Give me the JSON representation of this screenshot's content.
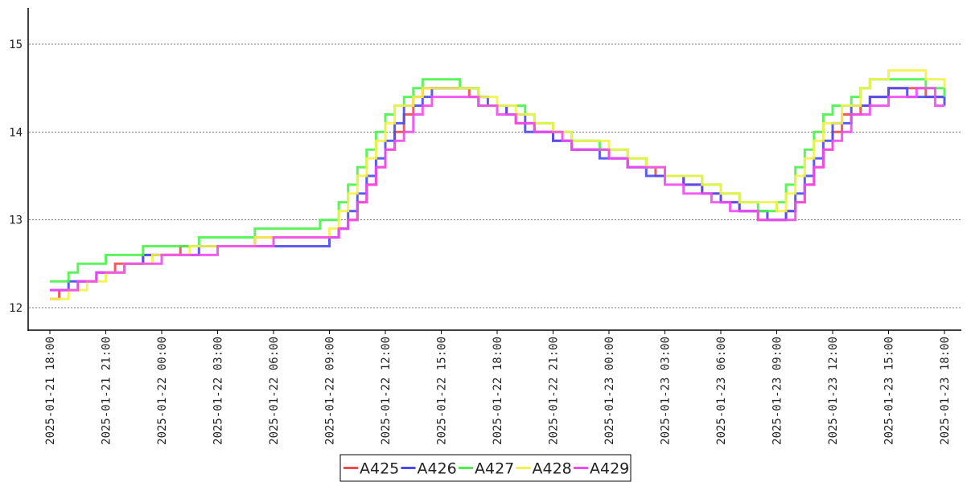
{
  "chart_data": {
    "type": "line",
    "title": "",
    "xlabel": "",
    "ylabel": "",
    "ylim": [
      11.7,
      15.4
    ],
    "y_ticks": [
      12,
      13,
      14,
      15
    ],
    "x_ticks": [
      "2025-01-21 18:00",
      "2025-01-21 21:00",
      "2025-01-22 00:00",
      "2025-01-22 03:00",
      "2025-01-22 06:00",
      "2025-01-22 09:00",
      "2025-01-22 12:00",
      "2025-01-22 15:00",
      "2025-01-22 18:00",
      "2025-01-22 21:00",
      "2025-01-23 00:00",
      "2025-01-23 03:00",
      "2025-01-23 06:00",
      "2025-01-23 09:00",
      "2025-01-23 12:00",
      "2025-01-23 15:00",
      "2025-01-23 18:00"
    ],
    "step": true,
    "grid": "horizontal-dotted",
    "legend_position": "bottom-center",
    "series": [
      {
        "name": "A425",
        "color": "#f24a4a",
        "points": [
          [
            "2025-01-21 18:00",
            12.1
          ],
          [
            "2025-01-21 18:30",
            12.2
          ],
          [
            "2025-01-21 19:30",
            12.3
          ],
          [
            "2025-01-21 20:30",
            12.4
          ],
          [
            "2025-01-21 21:30",
            12.5
          ],
          [
            "2025-01-21 23:00",
            12.6
          ],
          [
            "2025-01-22 01:00",
            12.7
          ],
          [
            "2025-01-22 05:00",
            12.8
          ],
          [
            "2025-01-22 09:30",
            12.9
          ],
          [
            "2025-01-22 10:00",
            13.0
          ],
          [
            "2025-01-22 10:30",
            13.2
          ],
          [
            "2025-01-22 11:00",
            13.4
          ],
          [
            "2025-01-22 11:30",
            13.6
          ],
          [
            "2025-01-22 12:00",
            13.8
          ],
          [
            "2025-01-22 12:30",
            14.0
          ],
          [
            "2025-01-22 13:00",
            14.2
          ],
          [
            "2025-01-22 13:30",
            14.4
          ],
          [
            "2025-01-22 14:00",
            14.5
          ],
          [
            "2025-01-22 16:30",
            14.4
          ],
          [
            "2025-01-22 17:00",
            14.3
          ],
          [
            "2025-01-22 18:30",
            14.2
          ],
          [
            "2025-01-22 19:00",
            14.1
          ],
          [
            "2025-01-22 20:00",
            14.0
          ],
          [
            "2025-01-22 21:00",
            13.9
          ],
          [
            "2025-01-22 22:00",
            13.8
          ],
          [
            "2025-01-23 00:00",
            13.7
          ],
          [
            "2025-01-23 01:00",
            13.6
          ],
          [
            "2025-01-23 02:30",
            13.5
          ],
          [
            "2025-01-23 04:00",
            13.4
          ],
          [
            "2025-01-23 05:00",
            13.3
          ],
          [
            "2025-01-23 06:00",
            13.2
          ],
          [
            "2025-01-23 07:00",
            13.1
          ],
          [
            "2025-01-23 08:00",
            13.0
          ],
          [
            "2025-01-23 09:30",
            13.1
          ],
          [
            "2025-01-23 10:00",
            13.2
          ],
          [
            "2025-01-23 10:30",
            13.4
          ],
          [
            "2025-01-23 11:00",
            13.6
          ],
          [
            "2025-01-23 11:30",
            13.8
          ],
          [
            "2025-01-23 12:00",
            14.0
          ],
          [
            "2025-01-23 12:30",
            14.2
          ],
          [
            "2025-01-23 13:30",
            14.3
          ],
          [
            "2025-01-23 14:00",
            14.4
          ],
          [
            "2025-01-23 15:00",
            14.5
          ],
          [
            "2025-01-23 17:00",
            14.4
          ],
          [
            "2025-01-23 18:00",
            14.4
          ]
        ]
      },
      {
        "name": "A426",
        "color": "#4a4af2",
        "points": [
          [
            "2025-01-21 18:00",
            12.2
          ],
          [
            "2025-01-21 19:00",
            12.3
          ],
          [
            "2025-01-21 20:30",
            12.4
          ],
          [
            "2025-01-21 22:00",
            12.5
          ],
          [
            "2025-01-21 23:00",
            12.6
          ],
          [
            "2025-01-22 02:00",
            12.7
          ],
          [
            "2025-01-22 06:00",
            12.7
          ],
          [
            "2025-01-22 09:00",
            12.8
          ],
          [
            "2025-01-22 09:30",
            12.9
          ],
          [
            "2025-01-22 10:00",
            13.1
          ],
          [
            "2025-01-22 10:30",
            13.3
          ],
          [
            "2025-01-22 11:00",
            13.5
          ],
          [
            "2025-01-22 11:30",
            13.7
          ],
          [
            "2025-01-22 12:00",
            13.9
          ],
          [
            "2025-01-22 12:30",
            14.1
          ],
          [
            "2025-01-22 13:00",
            14.3
          ],
          [
            "2025-01-22 14:00",
            14.4
          ],
          [
            "2025-01-22 14:30",
            14.5
          ],
          [
            "2025-01-22 17:00",
            14.4
          ],
          [
            "2025-01-22 17:30",
            14.3
          ],
          [
            "2025-01-22 18:30",
            14.2
          ],
          [
            "2025-01-22 19:30",
            14.0
          ],
          [
            "2025-01-22 21:00",
            13.9
          ],
          [
            "2025-01-22 22:00",
            13.8
          ],
          [
            "2025-01-22 23:30",
            13.7
          ],
          [
            "2025-01-23 01:00",
            13.6
          ],
          [
            "2025-01-23 02:00",
            13.5
          ],
          [
            "2025-01-23 04:00",
            13.4
          ],
          [
            "2025-01-23 05:00",
            13.3
          ],
          [
            "2025-01-23 06:00",
            13.2
          ],
          [
            "2025-01-23 07:00",
            13.1
          ],
          [
            "2025-01-23 08:30",
            13.0
          ],
          [
            "2025-01-23 09:30",
            13.1
          ],
          [
            "2025-01-23 10:00",
            13.3
          ],
          [
            "2025-01-23 10:30",
            13.5
          ],
          [
            "2025-01-23 11:00",
            13.7
          ],
          [
            "2025-01-23 11:30",
            13.9
          ],
          [
            "2025-01-23 12:00",
            14.1
          ],
          [
            "2025-01-23 13:00",
            14.3
          ],
          [
            "2025-01-23 14:00",
            14.4
          ],
          [
            "2025-01-23 15:00",
            14.5
          ],
          [
            "2025-01-23 16:00",
            14.4
          ],
          [
            "2025-01-23 18:00",
            14.3
          ]
        ]
      },
      {
        "name": "A427",
        "color": "#4af24a",
        "points": [
          [
            "2025-01-21 18:00",
            12.3
          ],
          [
            "2025-01-21 19:00",
            12.4
          ],
          [
            "2025-01-21 19:30",
            12.5
          ],
          [
            "2025-01-21 21:00",
            12.6
          ],
          [
            "2025-01-21 23:00",
            12.7
          ],
          [
            "2025-01-22 02:00",
            12.8
          ],
          [
            "2025-01-22 05:00",
            12.9
          ],
          [
            "2025-01-22 08:30",
            13.0
          ],
          [
            "2025-01-22 09:30",
            13.2
          ],
          [
            "2025-01-22 10:00",
            13.4
          ],
          [
            "2025-01-22 10:30",
            13.6
          ],
          [
            "2025-01-22 11:00",
            13.8
          ],
          [
            "2025-01-22 11:30",
            14.0
          ],
          [
            "2025-01-22 12:00",
            14.2
          ],
          [
            "2025-01-22 12:30",
            14.3
          ],
          [
            "2025-01-22 13:00",
            14.4
          ],
          [
            "2025-01-22 13:30",
            14.5
          ],
          [
            "2025-01-22 14:00",
            14.6
          ],
          [
            "2025-01-22 16:00",
            14.5
          ],
          [
            "2025-01-22 17:00",
            14.3
          ],
          [
            "2025-01-22 19:30",
            14.2
          ],
          [
            "2025-01-22 20:00",
            14.1
          ],
          [
            "2025-01-22 21:00",
            14.0
          ],
          [
            "2025-01-22 22:00",
            13.9
          ],
          [
            "2025-01-22 23:30",
            13.8
          ],
          [
            "2025-01-23 01:00",
            13.7
          ],
          [
            "2025-01-23 02:00",
            13.6
          ],
          [
            "2025-01-23 03:00",
            13.5
          ],
          [
            "2025-01-23 05:00",
            13.4
          ],
          [
            "2025-01-23 06:00",
            13.3
          ],
          [
            "2025-01-23 07:00",
            13.2
          ],
          [
            "2025-01-23 08:00",
            13.1
          ],
          [
            "2025-01-23 09:00",
            13.2
          ],
          [
            "2025-01-23 09:30",
            13.4
          ],
          [
            "2025-01-23 10:00",
            13.6
          ],
          [
            "2025-01-23 10:30",
            13.8
          ],
          [
            "2025-01-23 11:00",
            14.0
          ],
          [
            "2025-01-23 11:30",
            14.2
          ],
          [
            "2025-01-23 12:00",
            14.3
          ],
          [
            "2025-01-23 13:00",
            14.4
          ],
          [
            "2025-01-23 13:30",
            14.5
          ],
          [
            "2025-01-23 14:00",
            14.6
          ],
          [
            "2025-01-23 17:00",
            14.5
          ],
          [
            "2025-01-23 18:00",
            14.4
          ]
        ]
      },
      {
        "name": "A428",
        "color": "#f2f24a",
        "points": [
          [
            "2025-01-21 18:00",
            12.1
          ],
          [
            "2025-01-21 19:00",
            12.2
          ],
          [
            "2025-01-21 20:00",
            12.3
          ],
          [
            "2025-01-21 21:00",
            12.4
          ],
          [
            "2025-01-21 22:00",
            12.5
          ],
          [
            "2025-01-21 23:30",
            12.6
          ],
          [
            "2025-01-22 01:30",
            12.7
          ],
          [
            "2025-01-22 05:00",
            12.8
          ],
          [
            "2025-01-22 09:00",
            12.9
          ],
          [
            "2025-01-22 09:30",
            13.1
          ],
          [
            "2025-01-22 10:00",
            13.3
          ],
          [
            "2025-01-22 10:30",
            13.5
          ],
          [
            "2025-01-22 11:00",
            13.7
          ],
          [
            "2025-01-22 11:30",
            13.9
          ],
          [
            "2025-01-22 12:00",
            14.1
          ],
          [
            "2025-01-22 12:30",
            14.3
          ],
          [
            "2025-01-22 13:30",
            14.4
          ],
          [
            "2025-01-22 14:00",
            14.5
          ],
          [
            "2025-01-22 17:00",
            14.4
          ],
          [
            "2025-01-22 18:00",
            14.3
          ],
          [
            "2025-01-22 19:00",
            14.2
          ],
          [
            "2025-01-22 20:00",
            14.1
          ],
          [
            "2025-01-22 21:00",
            14.0
          ],
          [
            "2025-01-22 22:00",
            13.9
          ],
          [
            "2025-01-23 00:00",
            13.8
          ],
          [
            "2025-01-23 01:00",
            13.7
          ],
          [
            "2025-01-23 02:00",
            13.6
          ],
          [
            "2025-01-23 03:00",
            13.5
          ],
          [
            "2025-01-23 05:00",
            13.4
          ],
          [
            "2025-01-23 06:00",
            13.3
          ],
          [
            "2025-01-23 07:00",
            13.2
          ],
          [
            "2025-01-23 09:00",
            13.1
          ],
          [
            "2025-01-23 09:30",
            13.3
          ],
          [
            "2025-01-23 10:00",
            13.5
          ],
          [
            "2025-01-23 10:30",
            13.7
          ],
          [
            "2025-01-23 11:00",
            13.9
          ],
          [
            "2025-01-23 11:30",
            14.1
          ],
          [
            "2025-01-23 12:30",
            14.3
          ],
          [
            "2025-01-23 13:30",
            14.5
          ],
          [
            "2025-01-23 14:00",
            14.6
          ],
          [
            "2025-01-23 15:00",
            14.7
          ],
          [
            "2025-01-23 17:00",
            14.6
          ],
          [
            "2025-01-23 18:00",
            14.5
          ]
        ]
      },
      {
        "name": "A429",
        "color": "#f24af2",
        "points": [
          [
            "2025-01-21 18:00",
            12.2
          ],
          [
            "2025-01-21 19:30",
            12.3
          ],
          [
            "2025-01-21 20:30",
            12.4
          ],
          [
            "2025-01-21 22:00",
            12.5
          ],
          [
            "2025-01-22 00:00",
            12.6
          ],
          [
            "2025-01-22 03:00",
            12.7
          ],
          [
            "2025-01-22 06:00",
            12.8
          ],
          [
            "2025-01-22 09:30",
            12.9
          ],
          [
            "2025-01-22 10:00",
            13.0
          ],
          [
            "2025-01-22 10:30",
            13.2
          ],
          [
            "2025-01-22 11:00",
            13.4
          ],
          [
            "2025-01-22 11:30",
            13.6
          ],
          [
            "2025-01-22 12:00",
            13.8
          ],
          [
            "2025-01-22 12:30",
            13.9
          ],
          [
            "2025-01-22 13:00",
            14.0
          ],
          [
            "2025-01-22 13:30",
            14.2
          ],
          [
            "2025-01-22 14:00",
            14.3
          ],
          [
            "2025-01-22 14:30",
            14.4
          ],
          [
            "2025-01-22 17:00",
            14.3
          ],
          [
            "2025-01-22 18:00",
            14.2
          ],
          [
            "2025-01-22 19:00",
            14.1
          ],
          [
            "2025-01-22 20:00",
            14.0
          ],
          [
            "2025-01-22 21:30",
            13.9
          ],
          [
            "2025-01-22 22:00",
            13.8
          ],
          [
            "2025-01-23 00:00",
            13.7
          ],
          [
            "2025-01-23 01:00",
            13.6
          ],
          [
            "2025-01-23 03:00",
            13.4
          ],
          [
            "2025-01-23 04:00",
            13.3
          ],
          [
            "2025-01-23 05:30",
            13.2
          ],
          [
            "2025-01-23 06:30",
            13.1
          ],
          [
            "2025-01-23 08:00",
            13.0
          ],
          [
            "2025-01-23 09:30",
            13.0
          ],
          [
            "2025-01-23 10:00",
            13.2
          ],
          [
            "2025-01-23 10:30",
            13.4
          ],
          [
            "2025-01-23 11:00",
            13.6
          ],
          [
            "2025-01-23 11:30",
            13.8
          ],
          [
            "2025-01-23 12:00",
            13.9
          ],
          [
            "2025-01-23 12:30",
            14.0
          ],
          [
            "2025-01-23 13:00",
            14.2
          ],
          [
            "2025-01-23 14:00",
            14.3
          ],
          [
            "2025-01-23 15:00",
            14.4
          ],
          [
            "2025-01-23 16:30",
            14.5
          ],
          [
            "2025-01-23 17:30",
            14.3
          ],
          [
            "2025-01-23 18:00",
            14.3
          ]
        ]
      }
    ]
  }
}
